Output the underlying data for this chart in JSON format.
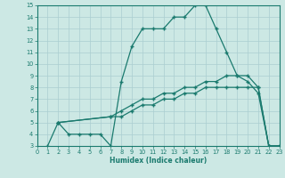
{
  "line1_x": [
    1,
    2,
    3,
    4,
    5,
    6,
    7,
    8,
    9,
    10,
    11,
    12,
    13,
    14,
    15,
    16,
    17,
    18,
    19,
    20,
    21,
    22,
    23
  ],
  "line1_y": [
    3,
    5,
    4,
    4,
    4,
    4,
    3,
    8.5,
    11.5,
    13,
    13,
    13,
    14,
    14,
    15,
    15,
    13,
    11,
    9,
    8.5,
    7.5,
    3,
    3
  ],
  "line2_x": [
    2,
    7,
    8,
    9,
    10,
    11,
    12,
    13,
    14,
    15,
    16,
    17,
    18,
    19,
    20,
    21,
    22,
    23
  ],
  "line2_y": [
    5,
    5.5,
    6.0,
    6.5,
    7.0,
    7.0,
    7.5,
    7.5,
    8.0,
    8.0,
    8.5,
    8.5,
    9.0,
    9.0,
    9.0,
    8.0,
    3.0,
    3.0
  ],
  "line3_x": [
    2,
    7,
    8,
    9,
    10,
    11,
    12,
    13,
    14,
    15,
    16,
    17,
    18,
    19,
    20,
    21,
    22,
    23
  ],
  "line3_y": [
    5,
    5.5,
    5.5,
    6.0,
    6.5,
    6.5,
    7.0,
    7.0,
    7.5,
    7.5,
    8.0,
    8.0,
    8.0,
    8.0,
    8.0,
    8.0,
    3.0,
    3.0
  ],
  "line_color": "#1a7a6e",
  "bg_color": "#cce8e4",
  "grid_color": "#aaced0",
  "axis_color": "#1a7a6e",
  "xlabel": "Humidex (Indice chaleur)",
  "xmin": 0,
  "xmax": 23,
  "ymin": 3,
  "ymax": 15,
  "xticks": [
    0,
    1,
    2,
    3,
    4,
    5,
    6,
    7,
    8,
    9,
    10,
    11,
    12,
    13,
    14,
    15,
    16,
    17,
    18,
    19,
    20,
    21,
    22,
    23
  ],
  "yticks": [
    3,
    4,
    5,
    6,
    7,
    8,
    9,
    10,
    11,
    12,
    13,
    14,
    15
  ]
}
